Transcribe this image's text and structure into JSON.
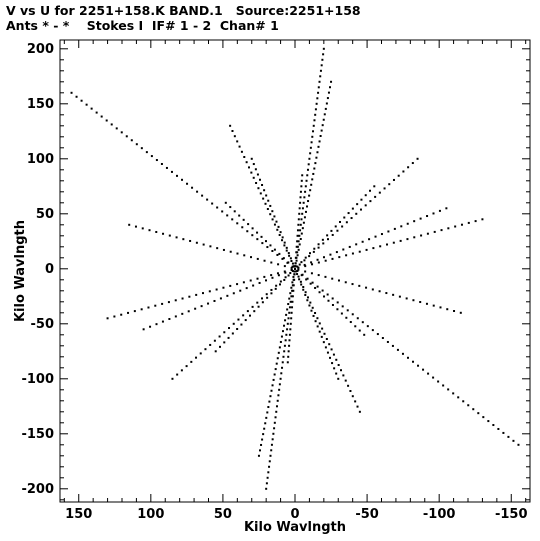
{
  "title_line1": "V vs U for 2251+158.K BAND.1   Source:2251+158",
  "title_line2": "Ants * - *    Stokes I  IF# 1 - 2  Chan# 1",
  "chart_data": {
    "type": "scatter",
    "xlabel": "Kilo Wavlngth",
    "ylabel": "Kilo Wavlngth",
    "xlim": [
      163,
      -163
    ],
    "ylim": [
      -212,
      208
    ],
    "xticks": [
      150,
      100,
      50,
      0,
      -50,
      -100,
      -150
    ],
    "yticks": [
      200,
      150,
      100,
      50,
      0,
      -50,
      -100,
      -150,
      -200
    ],
    "grid": false,
    "point_color": "#000000",
    "arms": [
      {
        "from": [
          155,
          160
        ],
        "to": [
          -155,
          -160
        ]
      },
      {
        "from": [
          115,
          40
        ],
        "to": [
          -115,
          -40
        ]
      },
      {
        "from": [
          48,
          60
        ],
        "to": [
          -48,
          -60
        ]
      },
      {
        "from": [
          45,
          130
        ],
        "to": [
          -45,
          -130
        ]
      },
      {
        "from": [
          -20,
          200
        ],
        "to": [
          20,
          -200
        ]
      },
      {
        "from": [
          -5,
          85
        ],
        "to": [
          5,
          -85
        ]
      },
      {
        "from": [
          -55,
          75
        ],
        "to": [
          55,
          -75
        ]
      },
      {
        "from": [
          -105,
          55
        ],
        "to": [
          105,
          -55
        ]
      },
      {
        "from": [
          -130,
          45
        ],
        "to": [
          130,
          -45
        ]
      },
      {
        "from": [
          30,
          100
        ],
        "to": [
          -30,
          -100
        ]
      },
      {
        "from": [
          -25,
          170
        ],
        "to": [
          25,
          -170
        ]
      },
      {
        "from": [
          -85,
          100
        ],
        "to": [
          85,
          -100
        ]
      }
    ]
  }
}
